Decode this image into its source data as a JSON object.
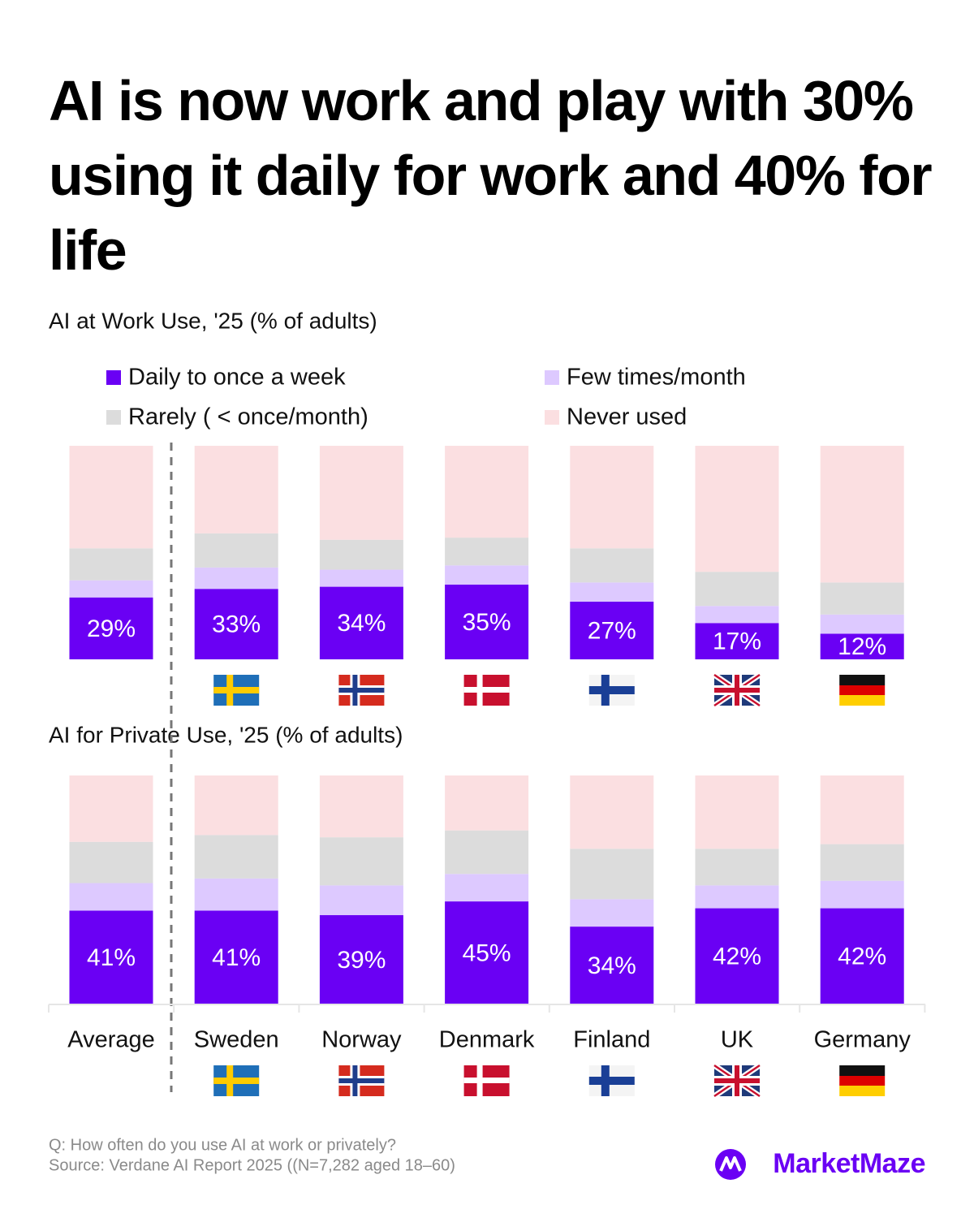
{
  "title": "AI is now work and play with 30% using it daily for work and 40% for life",
  "chart_data": [
    {
      "type": "bar",
      "stacked": true,
      "title": "AI at Work Use, '25 (% of adults)",
      "ylim": [
        0,
        100
      ],
      "series": [
        {
          "name": "Daily to once a week",
          "color": "#6a00f4",
          "values": [
            29,
            33,
            34,
            35,
            27,
            17,
            12
          ],
          "value_labels": [
            "29%",
            "33%",
            "34%",
            "35%",
            "27%",
            "17%",
            "12%"
          ]
        },
        {
          "name": "Few times/month",
          "color": "#ddc9ff",
          "values": [
            8,
            10,
            8,
            9,
            9,
            8,
            9
          ]
        },
        {
          "name": "Rarely ( < once/month)",
          "color": "#dcdcdc",
          "values": [
            15,
            16,
            14,
            13,
            16,
            16,
            15
          ]
        },
        {
          "name": "Never used",
          "color": "#fbdfe1",
          "values": [
            48,
            41,
            44,
            43,
            48,
            59,
            64
          ]
        }
      ]
    },
    {
      "type": "bar",
      "stacked": true,
      "title": "AI for Private Use, '25 (% of adults)",
      "ylim": [
        0,
        100
      ],
      "categories": [
        "Average",
        "Sweden",
        "Norway",
        "Denmark",
        "Finland",
        "UK",
        "Germany"
      ],
      "series": [
        {
          "color": "#6a00f4",
          "values": [
            41,
            41,
            39,
            45,
            34,
            42,
            42
          ],
          "value_labels": [
            "41%",
            "41%",
            "39%",
            "45%",
            "34%",
            "42%",
            "42%"
          ]
        },
        {
          "color": "#ddc9ff",
          "values": [
            12,
            14,
            13,
            12,
            12,
            10,
            12
          ]
        },
        {
          "color": "#dcdcdc",
          "values": [
            18,
            19,
            21,
            19,
            22,
            16,
            16
          ]
        },
        {
          "color": "#fbdfe1",
          "values": [
            29,
            26,
            27,
            24,
            32,
            32,
            30
          ]
        }
      ]
    }
  ],
  "notes": [
    "Q: How often do you use AI at work or privately?",
    "Source: Verdane AI Report 2025 ((N=7,282 aged 18–60)"
  ],
  "brand": "MarketMaze"
}
